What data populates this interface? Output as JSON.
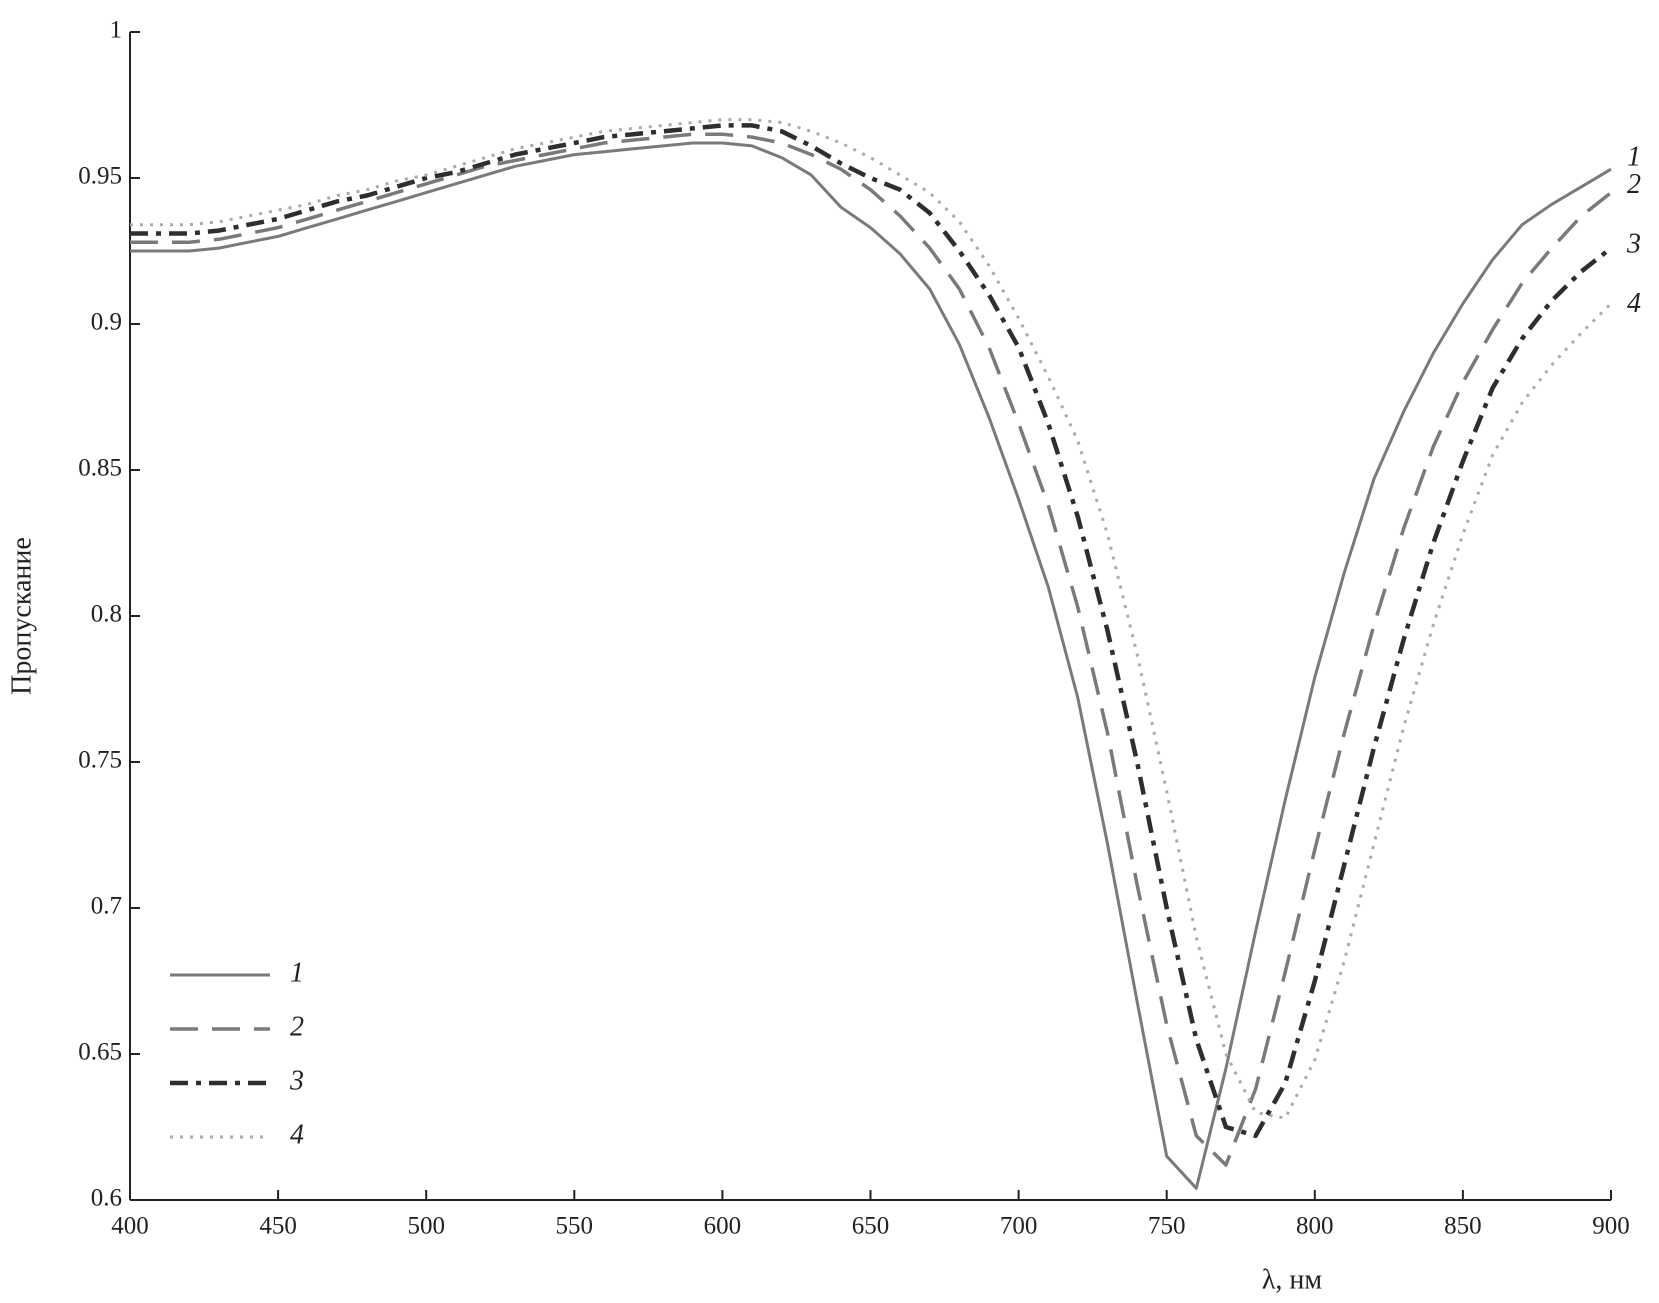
{
  "chart_data": {
    "type": "line",
    "x_label": "λ, нм",
    "y_label": "Пропускание",
    "x": [
      400,
      410,
      420,
      430,
      440,
      450,
      460,
      470,
      480,
      490,
      500,
      510,
      520,
      530,
      540,
      550,
      560,
      570,
      580,
      590,
      600,
      610,
      620,
      630,
      640,
      650,
      660,
      670,
      680,
      690,
      700,
      710,
      720,
      730,
      740,
      750,
      760,
      770,
      780,
      790,
      800,
      810,
      820,
      830,
      840,
      850,
      860,
      870,
      880,
      890,
      900
    ],
    "series": [
      {
        "name": "1",
        "color": "#7a7a7a",
        "style": "solid",
        "values": [
          0.925,
          0.925,
          0.925,
          0.926,
          0.928,
          0.93,
          0.933,
          0.936,
          0.939,
          0.942,
          0.945,
          0.948,
          0.951,
          0.954,
          0.956,
          0.958,
          0.959,
          0.96,
          0.961,
          0.962,
          0.962,
          0.961,
          0.957,
          0.951,
          0.94,
          0.933,
          0.924,
          0.912,
          0.893,
          0.868,
          0.84,
          0.81,
          0.772,
          0.722,
          0.668,
          0.615,
          0.604,
          0.645,
          0.692,
          0.737,
          0.779,
          0.815,
          0.847,
          0.87,
          0.89,
          0.907,
          0.922,
          0.934,
          0.941,
          0.947,
          0.953
        ]
      },
      {
        "name": "2",
        "color": "#7a7a7a",
        "style": "dashed",
        "values": [
          0.928,
          0.928,
          0.928,
          0.929,
          0.931,
          0.933,
          0.936,
          0.939,
          0.942,
          0.945,
          0.948,
          0.951,
          0.954,
          0.956,
          0.958,
          0.96,
          0.962,
          0.963,
          0.964,
          0.965,
          0.965,
          0.964,
          0.962,
          0.958,
          0.953,
          0.946,
          0.937,
          0.926,
          0.912,
          0.892,
          0.866,
          0.838,
          0.803,
          0.76,
          0.708,
          0.66,
          0.622,
          0.612,
          0.638,
          0.678,
          0.72,
          0.76,
          0.797,
          0.83,
          0.858,
          0.88,
          0.898,
          0.914,
          0.926,
          0.937,
          0.945
        ]
      },
      {
        "name": "3",
        "color": "#2e2e2e",
        "style": "dashdot",
        "values": [
          0.931,
          0.931,
          0.931,
          0.932,
          0.934,
          0.936,
          0.939,
          0.942,
          0.944,
          0.947,
          0.95,
          0.952,
          0.955,
          0.958,
          0.96,
          0.962,
          0.964,
          0.965,
          0.966,
          0.967,
          0.968,
          0.968,
          0.966,
          0.961,
          0.955,
          0.95,
          0.946,
          0.938,
          0.925,
          0.91,
          0.892,
          0.866,
          0.834,
          0.795,
          0.75,
          0.7,
          0.655,
          0.625,
          0.622,
          0.64,
          0.675,
          0.715,
          0.755,
          0.792,
          0.825,
          0.853,
          0.878,
          0.895,
          0.908,
          0.918,
          0.926
        ]
      },
      {
        "name": "4",
        "color": "#aaaaaa",
        "style": "dotted",
        "values": [
          0.934,
          0.934,
          0.934,
          0.935,
          0.937,
          0.939,
          0.941,
          0.944,
          0.946,
          0.949,
          0.951,
          0.954,
          0.957,
          0.96,
          0.962,
          0.964,
          0.966,
          0.967,
          0.968,
          0.969,
          0.97,
          0.97,
          0.969,
          0.966,
          0.962,
          0.957,
          0.951,
          0.945,
          0.935,
          0.92,
          0.902,
          0.882,
          0.86,
          0.828,
          0.787,
          0.74,
          0.69,
          0.65,
          0.63,
          0.628,
          0.648,
          0.682,
          0.722,
          0.762,
          0.797,
          0.828,
          0.855,
          0.873,
          0.886,
          0.897,
          0.907
        ]
      }
    ],
    "xlim": [
      400,
      900
    ],
    "xticks": [
      400,
      450,
      500,
      550,
      600,
      650,
      700,
      750,
      800,
      850,
      900
    ],
    "ylim": [
      0.6,
      1
    ],
    "yticks": [
      0.6,
      0.65,
      0.7,
      0.75,
      0.8,
      0.85,
      0.9,
      0.95,
      1
    ],
    "grid": false,
    "legend": "lower left",
    "end_labels": true
  }
}
